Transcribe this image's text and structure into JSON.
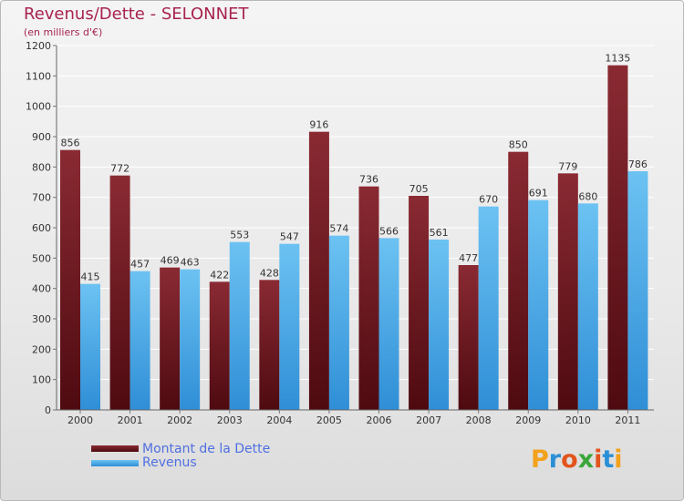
{
  "colors": {
    "dette_top": "#8a2a33",
    "dette_bottom": "#4e0a10",
    "revenus_top": "#6cc2f2",
    "revenus_bottom": "#2f8ed6",
    "title": "#a8234e",
    "legend_text": "#4f6fe0"
  },
  "logo": {
    "text": "Proxiti",
    "letter_colors": [
      "#f2a21b",
      "#2b8fd6",
      "#e2541c",
      "#3aa63a",
      "#e2541c",
      "#2b8fd6",
      "#f2a21b"
    ]
  },
  "chart_data": {
    "type": "bar",
    "title": "Revenus/Dette - SELONNET",
    "subtitle": "(en milliers d'€)",
    "xlabel": "",
    "ylabel": "",
    "categories": [
      "2000",
      "2001",
      "2002",
      "2003",
      "2004",
      "2005",
      "2006",
      "2007",
      "2008",
      "2009",
      "2010",
      "2011"
    ],
    "series": [
      {
        "name": "Montant de la Dette",
        "values": [
          856,
          772,
          469,
          422,
          428,
          916,
          736,
          705,
          477,
          850,
          779,
          1135
        ]
      },
      {
        "name": "Revenus",
        "values": [
          415,
          457,
          463,
          553,
          547,
          574,
          566,
          561,
          670,
          691,
          680,
          786
        ]
      }
    ],
    "ylim": [
      0,
      1200
    ],
    "yticks": [
      0,
      100,
      200,
      300,
      400,
      500,
      600,
      700,
      800,
      900,
      1000,
      1100,
      1200
    ],
    "grid": true,
    "legend_position": "bottom-left"
  }
}
